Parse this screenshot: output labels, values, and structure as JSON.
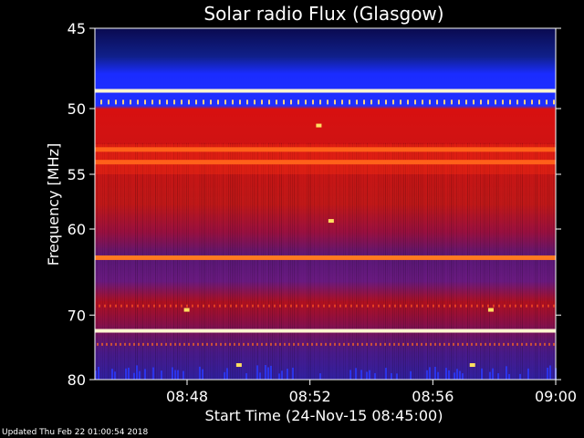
{
  "chart_data": {
    "type": "heatmap",
    "title": "Solar radio Flux (Glasgow)",
    "xlabel": "Start Time (24-Nov-15 08:45:00)",
    "ylabel": "Frequency [MHz]",
    "x_range_minutes": [
      0,
      15
    ],
    "x_ticks": [
      "08:48",
      "08:52",
      "08:56",
      "09:00"
    ],
    "x_tick_minutes": [
      3,
      7,
      11,
      15
    ],
    "y_range_mhz": [
      45,
      80
    ],
    "y_ticks": [
      45,
      50,
      55,
      60,
      70,
      80
    ],
    "y_scale": "log-like (inverted, frequency increasing downward)",
    "colormap": "blue-purple-red-yellow-white",
    "features": [
      {
        "freq_mhz": 48.8,
        "intensity": "saturated",
        "note": "narrow bright band"
      },
      {
        "freq_mhz": 53.0,
        "intensity": "high",
        "note": "bright band"
      },
      {
        "freq_mhz": 54.0,
        "intensity": "high",
        "note": "orange band"
      },
      {
        "freq_mhz": 63.0,
        "intensity": "high",
        "note": "red band"
      },
      {
        "freq_mhz": 72.2,
        "intensity": "saturated",
        "note": "narrow bright band"
      }
    ]
  },
  "footer": {
    "updated": "Updated Thu Feb 22 01:00:54 2018"
  },
  "colors": {
    "background": "#000000",
    "low": "#0a0a5a",
    "blue": "#1a2cff",
    "purple": "#5a1aa0",
    "red": "#d81010",
    "orange": "#ff5a10",
    "yellow": "#ffe060",
    "white": "#ffffff"
  }
}
